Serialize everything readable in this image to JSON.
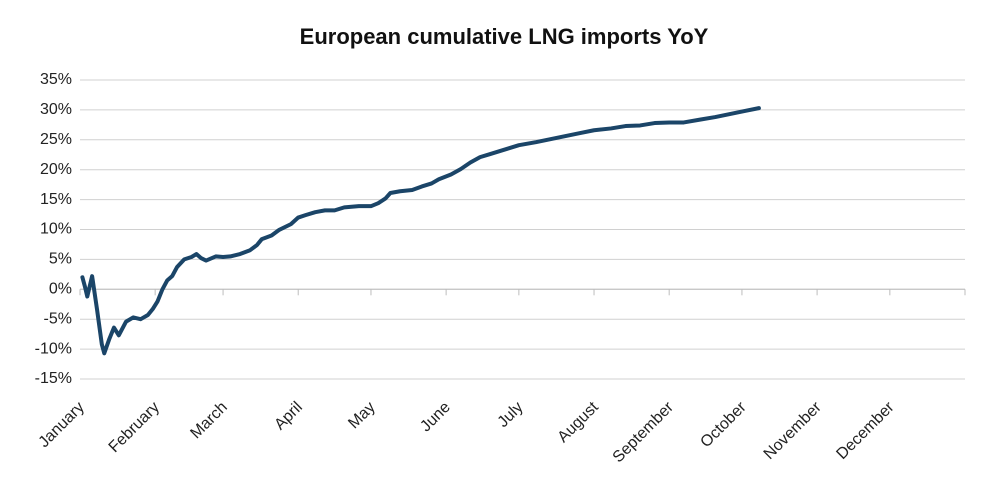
{
  "chart_data": {
    "type": "line",
    "title": "European cumulative LNG imports YoY",
    "x": [
      1,
      2,
      3,
      5,
      7,
      9,
      10,
      12,
      14,
      16,
      19,
      22,
      25,
      28,
      30,
      32,
      34,
      36,
      38,
      40,
      43,
      46,
      48,
      50,
      52,
      56,
      59,
      62,
      66,
      70,
      73,
      75,
      79,
      82,
      87,
      90,
      93,
      97,
      101,
      105,
      109,
      115,
      120,
      123,
      126,
      128,
      132,
      137,
      141,
      145,
      148,
      153,
      157,
      161,
      165,
      169,
      173,
      177,
      181,
      188,
      194,
      200,
      206,
      212,
      219,
      225,
      231,
      237,
      243,
      249,
      256,
      262,
      268,
      274,
      280
    ],
    "series": [
      {
        "name": "Cumulative LNG imports YoY",
        "color": "#1b4568",
        "values": [
          2.0,
          0.5,
          -1.2,
          2.2,
          -3.3,
          -9.2,
          -10.7,
          -8.4,
          -6.4,
          -7.7,
          -5.4,
          -4.7,
          -5.0,
          -4.3,
          -3.3,
          -2.0,
          0,
          1.5,
          2.2,
          3.7,
          5.0,
          5.4,
          5.9,
          5.2,
          4.8,
          5.5,
          5.4,
          5.5,
          5.9,
          6.5,
          7.4,
          8.4,
          9.0,
          9.9,
          10.9,
          12.0,
          12.4,
          12.9,
          13.2,
          13.2,
          13.7,
          13.9,
          13.9,
          14.4,
          15.2,
          16.1,
          16.4,
          16.6,
          17.2,
          17.7,
          18.4,
          19.2,
          20.1,
          21.2,
          22.1,
          22.6,
          23.1,
          23.6,
          24.1,
          24.6,
          25.1,
          25.6,
          26.1,
          26.6,
          26.9,
          27.3,
          27.4,
          27.8,
          27.9,
          27.9,
          28.4,
          28.8,
          29.3,
          29.8,
          30.3
        ]
      }
    ],
    "xlim": [
      0,
      365
    ],
    "xticks": [
      {
        "value": 0,
        "label": "January"
      },
      {
        "value": 31,
        "label": "February"
      },
      {
        "value": 59,
        "label": "March"
      },
      {
        "value": 90,
        "label": "April"
      },
      {
        "value": 120,
        "label": "May"
      },
      {
        "value": 151,
        "label": "June"
      },
      {
        "value": 181,
        "label": "July"
      },
      {
        "value": 212,
        "label": "August"
      },
      {
        "value": 243,
        "label": "September"
      },
      {
        "value": 273,
        "label": "October"
      },
      {
        "value": 304,
        "label": "November"
      },
      {
        "value": 334,
        "label": "December"
      }
    ],
    "ylim": [
      -15,
      35
    ],
    "yticks": [
      {
        "value": -15,
        "label": "-15%"
      },
      {
        "value": -10,
        "label": "-10%"
      },
      {
        "value": -5,
        "label": "-5%"
      },
      {
        "value": 0,
        "label": "0%"
      },
      {
        "value": 5,
        "label": "5%"
      },
      {
        "value": 10,
        "label": "10%"
      },
      {
        "value": 15,
        "label": "15%"
      },
      {
        "value": 20,
        "label": "20%"
      },
      {
        "value": 25,
        "label": "25%"
      },
      {
        "value": 30,
        "label": "30%"
      },
      {
        "value": 35,
        "label": "35%"
      }
    ],
    "grid": true
  }
}
